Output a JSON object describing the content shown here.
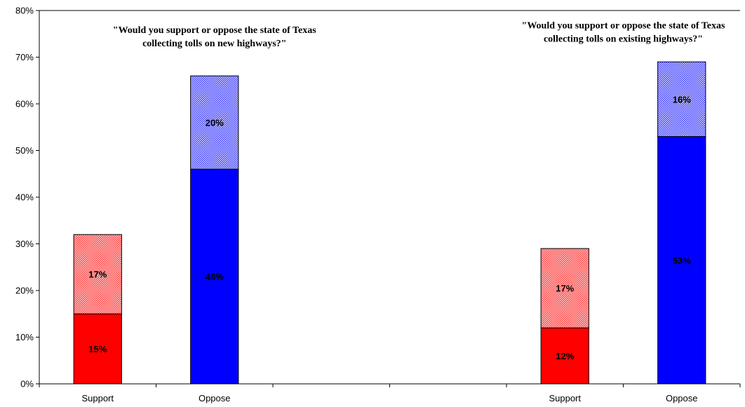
{
  "chart_data": {
    "type": "bar",
    "stacked": true,
    "categories": [
      "Support",
      "Oppose",
      "",
      "",
      "Support",
      "Oppose"
    ],
    "series": [
      {
        "values": [
          15,
          46,
          null,
          null,
          12,
          53
        ],
        "colors": [
          "#ff0000",
          "#0000ff",
          null,
          null,
          "#ff0000",
          "#0000ff"
        ],
        "pattern": "solid"
      },
      {
        "values": [
          17,
          20,
          null,
          null,
          17,
          16
        ],
        "colors": [
          "#ff0000",
          "#0000ff",
          null,
          null,
          "#ff0000",
          "#0000ff"
        ],
        "pattern": "dotted"
      }
    ],
    "data_labels": [
      [
        "15%",
        "46%",
        null,
        null,
        "12%",
        "53%"
      ],
      [
        "17%",
        "20%",
        null,
        null,
        "17%",
        "16%"
      ]
    ],
    "ylim": [
      0,
      80
    ],
    "yticks": [
      "0%",
      "10%",
      "20%",
      "30%",
      "40%",
      "50%",
      "60%",
      "70%",
      "80%"
    ],
    "ytick_values": [
      0,
      10,
      20,
      30,
      40,
      50,
      60,
      70,
      80
    ],
    "grid": false,
    "annotations": [
      {
        "lines": [
          "\"Would you support or oppose the state of Texas",
          "collecting tolls on new highways?\""
        ],
        "over_group": 0
      },
      {
        "lines": [
          "\"Would you support or oppose the state of Texas",
          "collecting tolls on existing highways?\""
        ],
        "over_group": 1
      }
    ],
    "title": "",
    "xlabel": "",
    "ylabel": ""
  }
}
